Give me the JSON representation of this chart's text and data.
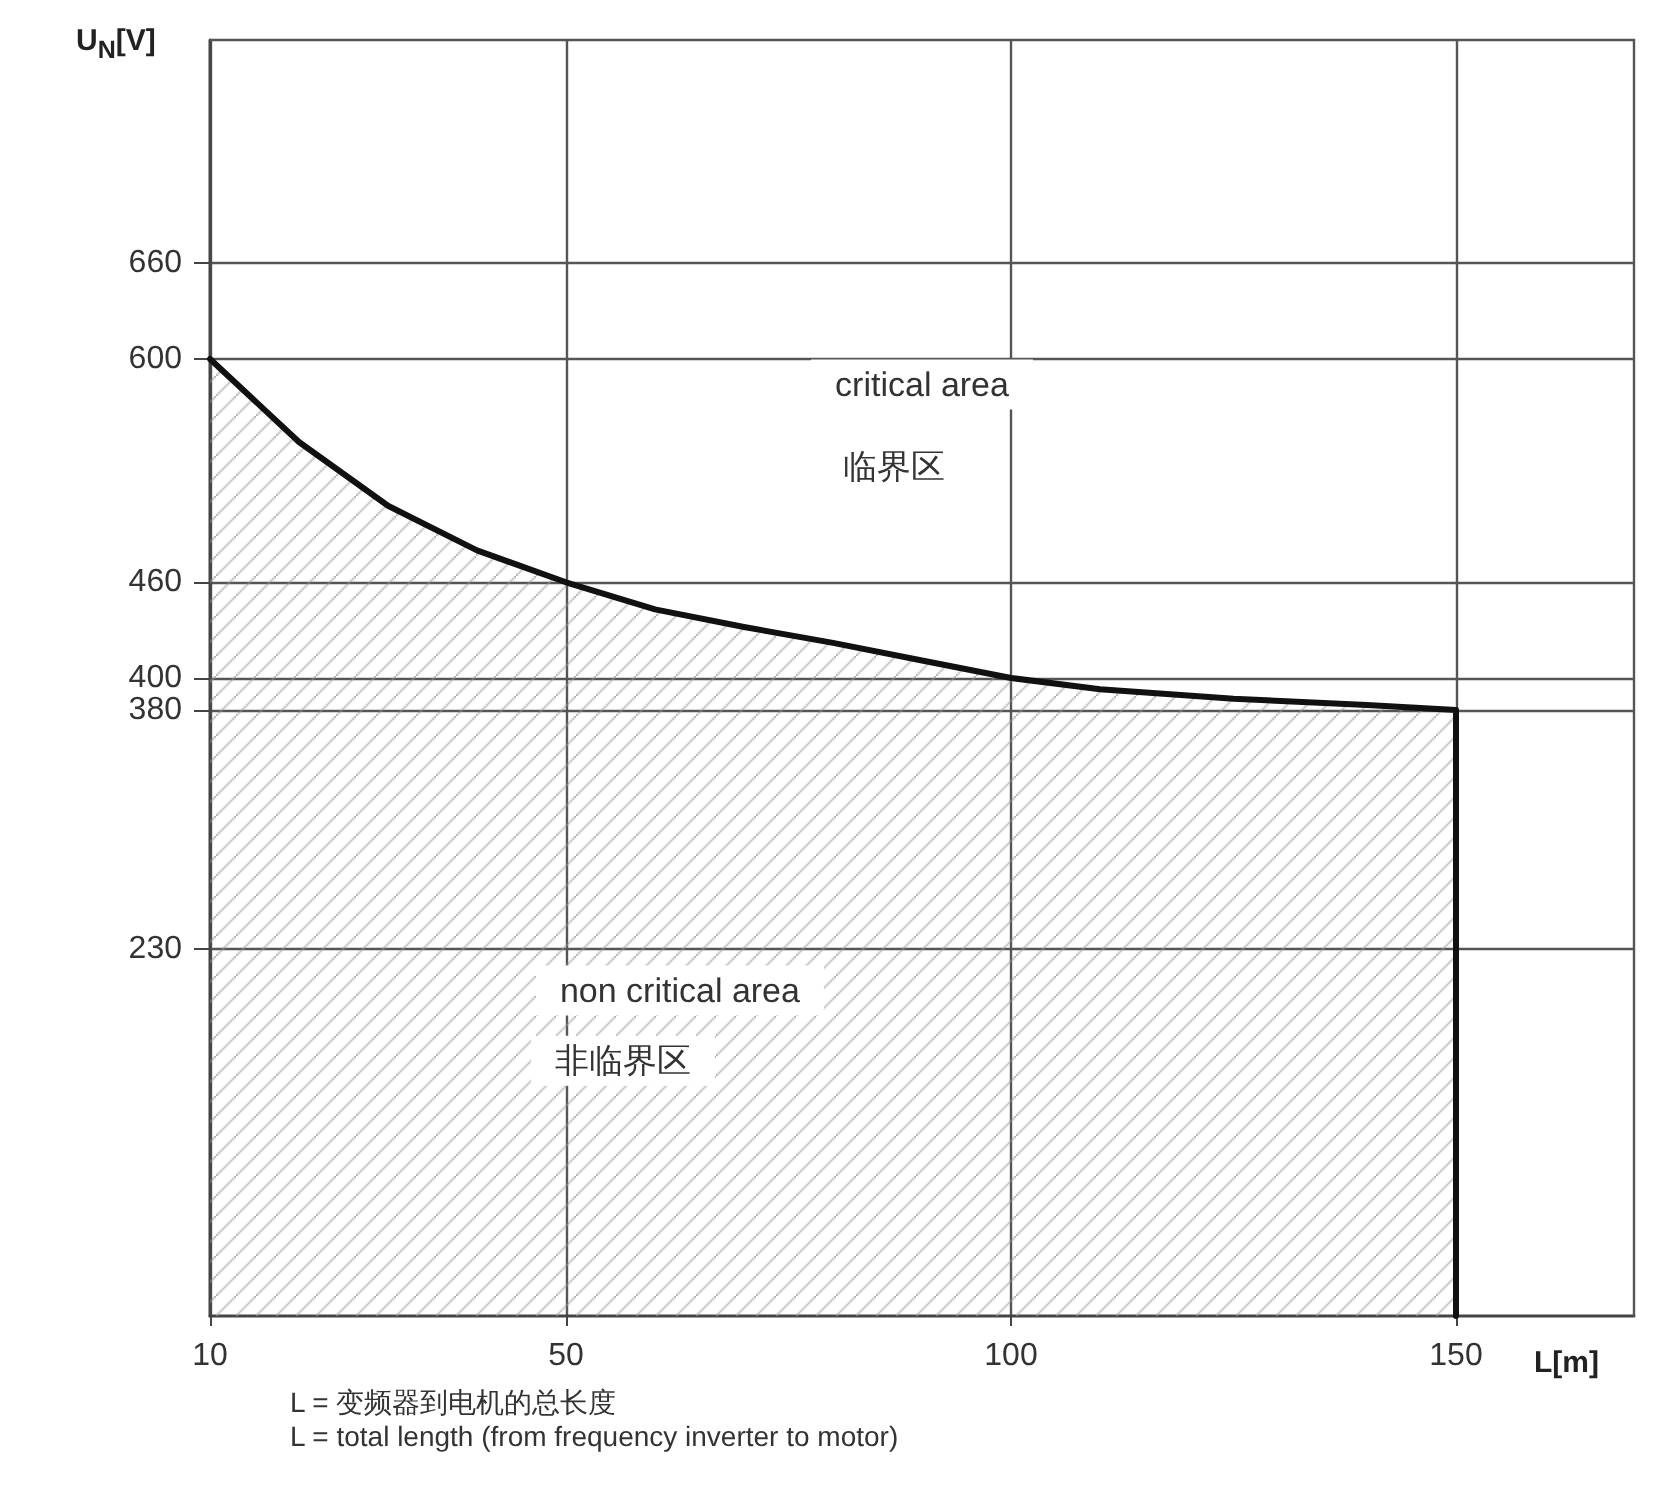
{
  "chart_data": {
    "type": "area",
    "xlabel": "L[m]",
    "ylabel": "U$_{N}$[V]",
    "x": [
      10,
      20,
      30,
      40,
      50,
      60,
      70,
      80,
      90,
      100,
      110,
      125,
      140,
      150,
      150
    ],
    "series": [
      {
        "color": "#111111",
        "values": [
          600,
          548,
          508,
          480,
          460,
          443,
          432,
          422,
          411,
          400,
          393,
          387,
          383,
          380,
          0
        ]
      }
    ],
    "xlim": [
      10,
      170
    ],
    "ylim": [
      0,
      800
    ],
    "xticks": [
      10,
      50,
      100,
      150
    ],
    "yticks": [
      230,
      380,
      400,
      460,
      600,
      660
    ],
    "grid": true,
    "marker": "none",
    "line_style": "solid",
    "annotations": [
      "critical area",
      "临界区",
      "non critical area",
      "非临界区",
      "L = 变频器到电机的总长度",
      "L = total length (from frequency inverter to motor)"
    ]
  }
}
